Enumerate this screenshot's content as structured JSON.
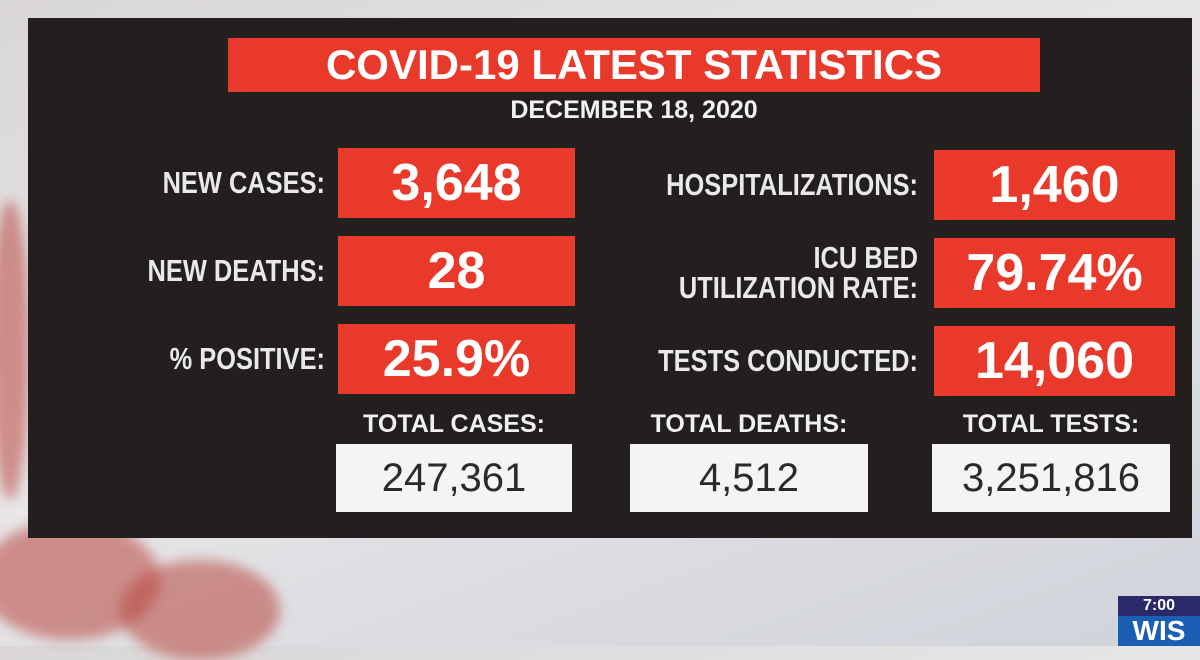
{
  "header": {
    "title": "COVID-19 LATEST STATISTICS",
    "date": "DECEMBER 18, 2020"
  },
  "stats": [
    {
      "label": "NEW CASES:",
      "value": "3,648"
    },
    {
      "label": "NEW DEATHS:",
      "value": "28"
    },
    {
      "label": "% POSITIVE:",
      "value": "25.9%"
    },
    {
      "label": "HOSPITALIZATIONS:",
      "value": "1,460"
    },
    {
      "label_lines": [
        "ICU BED",
        "UTILIZATION RATE:"
      ],
      "value": "79.74%"
    },
    {
      "label": "TESTS CONDUCTED:",
      "value": "14,060"
    }
  ],
  "totals": [
    {
      "label": "TOTAL CASES:",
      "value": "247,361"
    },
    {
      "label": "TOTAL DEATHS:",
      "value": "4,512"
    },
    {
      "label": "TOTAL TESTS:",
      "value": "3,251,816"
    }
  ],
  "station": {
    "time": "7:00",
    "name": "WIS"
  }
}
